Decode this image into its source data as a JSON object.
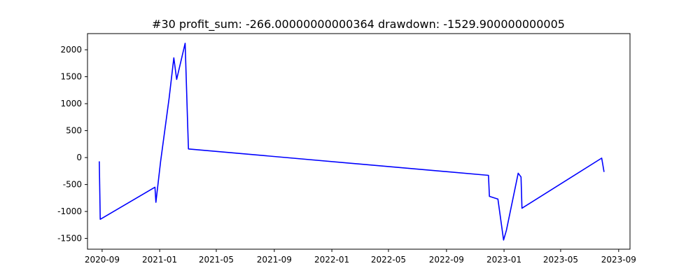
{
  "chart_data": {
    "type": "line",
    "title": "#30   profit_sum: -266.00000000000364 drawdown: -1529.900000000005",
    "xlabel": "",
    "ylabel": "",
    "x_axis_type": "date",
    "xlim": [
      "2020-08-01",
      "2023-09-25"
    ],
    "ylim": [
      -1700,
      2300
    ],
    "x_ticks": [
      {
        "date": "2020-09-01",
        "label": "2020-09"
      },
      {
        "date": "2021-01-01",
        "label": "2021-01"
      },
      {
        "date": "2021-05-01",
        "label": "2021-05"
      },
      {
        "date": "2021-09-01",
        "label": "2021-09"
      },
      {
        "date": "2022-01-01",
        "label": "2022-01"
      },
      {
        "date": "2022-05-01",
        "label": "2022-05"
      },
      {
        "date": "2022-09-01",
        "label": "2022-09"
      },
      {
        "date": "2023-01-01",
        "label": "2023-01"
      },
      {
        "date": "2023-05-01",
        "label": "2023-05"
      },
      {
        "date": "2023-09-01",
        "label": "2023-09"
      }
    ],
    "y_ticks": [
      -1500,
      -1000,
      -500,
      0,
      500,
      1000,
      1500,
      2000
    ],
    "grid": false,
    "legend": "none",
    "series": [
      {
        "color": "#0000ff",
        "points": [
          {
            "x": "2020-08-26",
            "y": -70
          },
          {
            "x": "2020-08-28",
            "y": -1145
          },
          {
            "x": "2020-12-22",
            "y": -550
          },
          {
            "x": "2020-12-24",
            "y": -830
          },
          {
            "x": "2021-01-03",
            "y": -70
          },
          {
            "x": "2021-01-21",
            "y": 1100
          },
          {
            "x": "2021-01-31",
            "y": 1850
          },
          {
            "x": "2021-02-06",
            "y": 1450
          },
          {
            "x": "2021-02-24",
            "y": 2120
          },
          {
            "x": "2021-03-01",
            "y": 700
          },
          {
            "x": "2021-03-03",
            "y": 160
          },
          {
            "x": "2022-11-29",
            "y": -330
          },
          {
            "x": "2022-12-01",
            "y": -720
          },
          {
            "x": "2022-12-19",
            "y": -770
          },
          {
            "x": "2022-12-31",
            "y": -1530
          },
          {
            "x": "2023-01-06",
            "y": -1350
          },
          {
            "x": "2023-01-31",
            "y": -290
          },
          {
            "x": "2023-02-06",
            "y": -360
          },
          {
            "x": "2023-02-08",
            "y": -940
          },
          {
            "x": "2023-07-27",
            "y": -10
          },
          {
            "x": "2023-08-01",
            "y": -266
          }
        ]
      }
    ]
  }
}
